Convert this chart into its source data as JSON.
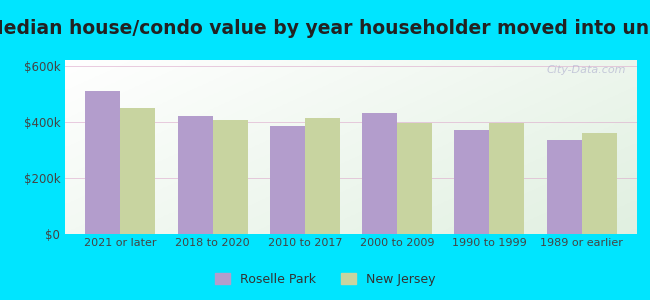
{
  "title": "Median house/condo value by year householder moved into unit",
  "categories": [
    "2021 or later",
    "2018 to 2020",
    "2010 to 2017",
    "2000 to 2009",
    "1990 to 1999",
    "1989 or earlier"
  ],
  "roselle_park": [
    510000,
    420000,
    385000,
    430000,
    370000,
    335000
  ],
  "new_jersey": [
    450000,
    405000,
    415000,
    395000,
    395000,
    360000
  ],
  "ylim": [
    0,
    620000
  ],
  "yticks": [
    0,
    200000,
    400000,
    600000
  ],
  "color_roselle": "#b39dcc",
  "color_nj": "#c8d4a0",
  "background_fig": "#00e5ff",
  "legend_roselle": "Roselle Park",
  "legend_nj": "New Jersey",
  "watermark": "City-Data.com",
  "bar_width": 0.38,
  "title_fontsize": 13.5
}
